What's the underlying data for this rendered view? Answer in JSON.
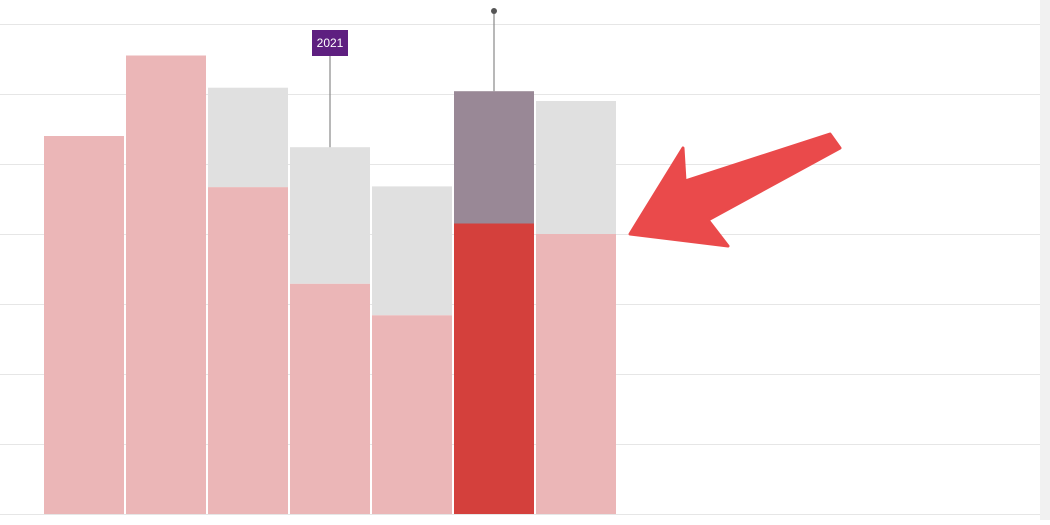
{
  "colors": {
    "primary_bar": "#ebb6b7",
    "stacked_bar": "#e0e0e0",
    "highlight_primary": "#d4403c",
    "highlight_stacked": "#998896",
    "gridline": "#e6e6e6",
    "annotation_badge": "#5e1f80",
    "annotation_text": "#ffffff",
    "callout_arrow": "#ea4a4b",
    "leader_line": "#888888",
    "scroll_edge": "#f1f1f1"
  },
  "annotations": [
    {
      "label": "2021",
      "bar_index": 3
    }
  ],
  "callout": {
    "icon": "arrow-icon",
    "points_to_bar_index": 6
  },
  "chart_data": {
    "type": "bar",
    "stacked": true,
    "categories": [
      "",
      "",
      "",
      "",
      "",
      "",
      ""
    ],
    "series": [
      {
        "values": [
          5.4,
          6.55,
          4.67,
          3.29,
          2.84,
          4.15,
          4.0
        ],
        "color": "#ebb6b7"
      },
      {
        "values": [
          0,
          0,
          1.42,
          1.95,
          1.84,
          1.89,
          1.9
        ],
        "color": "#e0e0e0"
      }
    ],
    "highlight_bar_index": 5,
    "leader_marker_bar_index": 5,
    "ylim": [
      0,
      7
    ],
    "y_gridline_step": 1,
    "grid": true,
    "title": "",
    "xlabel": "",
    "ylabel": ""
  }
}
